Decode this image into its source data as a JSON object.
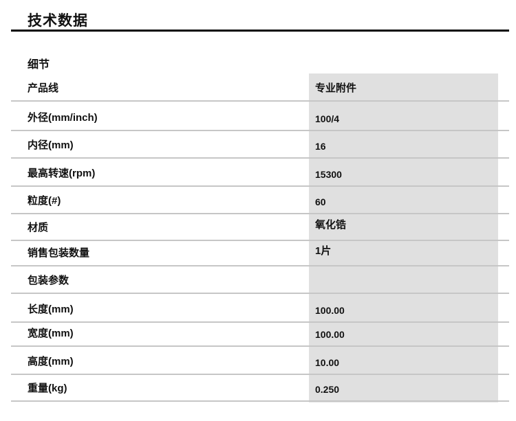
{
  "title": "技术数据",
  "section": "细节",
  "rows": [
    {
      "label": "产品线",
      "value": "专业附件"
    },
    {
      "label": "外径(mm/inch)",
      "value": "100/4"
    },
    {
      "label": "内径(mm)",
      "value": "16"
    },
    {
      "label": "最高转速(rpm)",
      "value": "15300"
    },
    {
      "label": "粒度(#)",
      "value": "60"
    },
    {
      "label": "材质",
      "value": "氧化锆"
    },
    {
      "label": "销售包装数量",
      "value": "1片"
    },
    {
      "label": "包装参数",
      "value": ""
    },
    {
      "label": "长度(mm)",
      "value": "100.00"
    },
    {
      "label": "宽度(mm)",
      "value": "100.00"
    },
    {
      "label": "高度(mm)",
      "value": "10.00"
    },
    {
      "label": "重量(kg)",
      "value": "0.250"
    }
  ]
}
